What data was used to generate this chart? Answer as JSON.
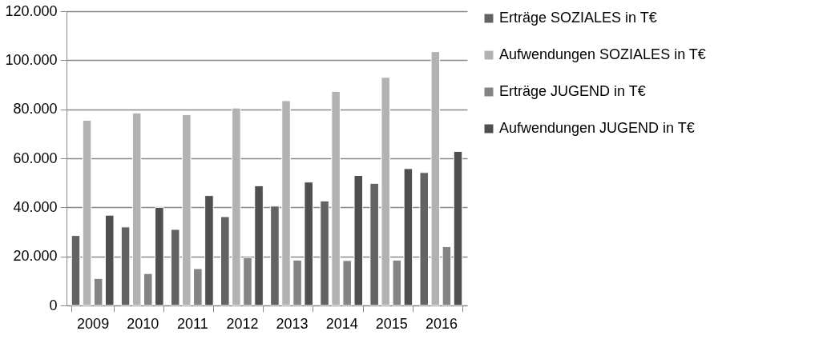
{
  "chart_data": {
    "type": "bar",
    "categories": [
      "2009",
      "2010",
      "2011",
      "2012",
      "2013",
      "2014",
      "2015",
      "2016"
    ],
    "series": [
      {
        "name": "Erträge SOZIALES in T€",
        "color": "#636363",
        "values": [
          28500,
          32000,
          31000,
          36200,
          40500,
          42600,
          49800,
          54200
        ]
      },
      {
        "name": "Aufwendungen SOZIALES in T€",
        "color": "#b2b2b2",
        "values": [
          75500,
          78500,
          77800,
          80500,
          83500,
          87300,
          93000,
          103500
        ]
      },
      {
        "name": "Erträge JUGEND in T€",
        "color": "#848484",
        "values": [
          11000,
          13000,
          15000,
          19500,
          18500,
          18300,
          18500,
          24000
        ]
      },
      {
        "name": "Aufwendungen JUGEND in T€",
        "color": "#4f4f4f",
        "values": [
          36800,
          40000,
          44800,
          48800,
          50300,
          53000,
          55800,
          62800
        ]
      }
    ],
    "ylim": [
      0,
      120000
    ],
    "yticks": [
      0,
      {
        "value": 20000,
        "label": "20.000"
      },
      {
        "value": 40000,
        "label": "40.000"
      },
      {
        "value": 60000,
        "label": "60.000"
      },
      {
        "value": 80000,
        "label": "80.000"
      },
      {
        "value": 100000,
        "label": "100.000"
      },
      {
        "value": 120000,
        "label": "120.000"
      }
    ],
    "grid": "y",
    "legend": "right"
  }
}
